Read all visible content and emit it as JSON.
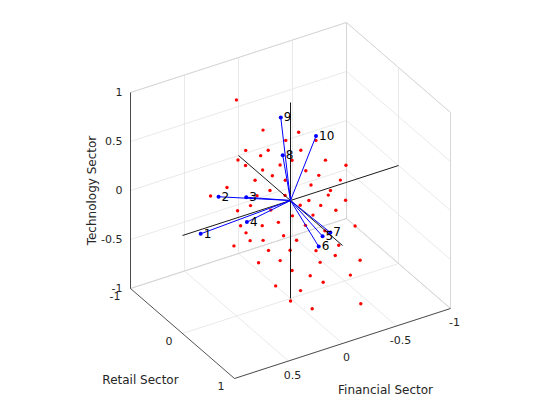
{
  "chart_data": {
    "type": "biplot",
    "xlabel": "Financial Sector",
    "ylabel": "Retail Sector",
    "zlabel": "Technology Sector",
    "xlim": [
      -1,
      1
    ],
    "ylim": [
      -1,
      1
    ],
    "zlim": [
      -1,
      1
    ],
    "xticks": [
      -1,
      -0.5,
      0,
      0.5
    ],
    "yticks": [
      -1,
      0,
      1
    ],
    "zticks": [
      -1,
      -0.5,
      0,
      0.5,
      1
    ],
    "grid": true,
    "vectors": {
      "color": "#0000ff",
      "marker": "dot",
      "labels": [
        "1",
        "2",
        "3",
        "4",
        "5",
        "6",
        "7",
        "8",
        "9",
        "10"
      ],
      "x": [
        0.88,
        0.57,
        0.41,
        0.5,
        0.04,
        0.1,
        -0.08,
        0.12,
        0.09,
        -0.14
      ],
      "y": [
        0.1,
        -0.2,
        0,
        0.2,
        0.7,
        0.75,
        0.6,
        0.1,
        0,
        0.2
      ],
      "z": [
        0.02,
        0.15,
        0.18,
        0.05,
        -0.03,
        -0.09,
        -0.08,
        0.55,
        0.88,
        0.7
      ]
    },
    "scores": {
      "color": "#ff0000",
      "marker": "dot",
      "x": [
        0.26,
        0.54,
        0.74,
        0.49,
        0.51,
        0.46,
        0.62,
        0.47,
        0.39,
        0.32,
        0.28,
        0.21,
        0.11,
        0.12,
        0.0,
        0.0,
        -0.11,
        -0.24,
        -0.19,
        -0.19,
        -0.31,
        -0.42,
        -0.37,
        -0.51,
        -0.61,
        -0.38,
        -0.22,
        0.11,
        0.31,
        0.23,
        0.16,
        0.16,
        0.1,
        0.04,
        -0.09,
        -0.16,
        -0.28,
        -0.42,
        -0.51,
        -0.55,
        -0.5,
        -0.41,
        -0.27,
        -0.13,
        0.01,
        0.1,
        0.13,
        0.24,
        0.3,
        0.44,
        0.33,
        0.24,
        0.04,
        -0.11,
        -0.41,
        0.31,
        0.37,
        -0.09,
        -0.17,
        0.19,
        0.05,
        -0.27,
        -0.35,
        0.27,
        0.18,
        -0.1,
        0.03,
        -0.35,
        -0.14,
        0.35
      ],
      "y": [
        -0.5,
        -0.1,
        0,
        0,
        0.1,
        0.1,
        0.2,
        0.2,
        -0.2,
        -0.2,
        -0.1,
        -0.1,
        -0.2,
        -0.1,
        -0.2,
        -0.1,
        -0.2,
        -0.3,
        -0.1,
        0,
        -0.1,
        -0.2,
        0,
        -0.1,
        -0.2,
        -0.3,
        -0.3,
        -0.3,
        0,
        0.1,
        0.1,
        0.2,
        0.2,
        0.2,
        0.1,
        0.1,
        0,
        0,
        0,
        0.1,
        0.3,
        0.3,
        0.3,
        0.3,
        0.4,
        0.4,
        0.3,
        0.3,
        0.2,
        0.3,
        0.4,
        0.5,
        0.5,
        0.4,
        0.5,
        0.1,
        0,
        0,
        0,
        0,
        0,
        0.1,
        0.2,
        -0.3,
        -0.2,
        -0.3,
        0.1,
        0,
        0.2,
        0.2
      ],
      "z": [
        0.89,
        0.28,
        0.31,
        0.07,
        -0.03,
        -0.12,
        -0.15,
        -0.15,
        0.46,
        0.38,
        0.26,
        0.34,
        0.46,
        0.25,
        0.27,
        0.16,
        0.28,
        0.29,
        0.19,
        0.09,
        0.1,
        0.17,
        -0.03,
        -0.02,
        0.05,
        0.34,
        0.48,
        0.62,
        0.16,
        0.03,
        -0.12,
        -0.21,
        -0.38,
        -0.3,
        -0.24,
        -0.16,
        -0.15,
        -0.25,
        -0.18,
        -0.41,
        -0.65,
        -0.77,
        -0.52,
        -0.54,
        -0.58,
        -0.7,
        -0.53,
        -0.39,
        -0.31,
        -0.34,
        -0.57,
        -0.71,
        -0.86,
        -0.69,
        -0.97,
        -0.1,
        0.08,
        -0.08,
        -0.06,
        0.17,
        0.07,
        -0.36,
        -0.49,
        0.47,
        0.43,
        0.44,
        -0.1,
        -0.07,
        -0.47,
        -0.19
      ]
    }
  }
}
